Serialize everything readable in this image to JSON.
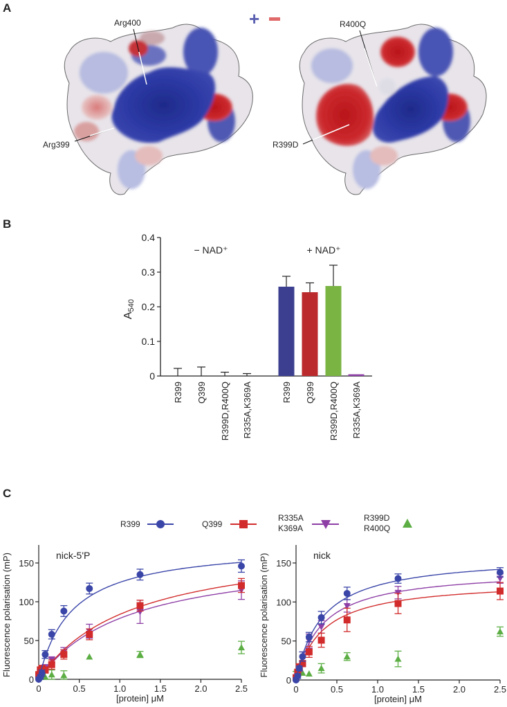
{
  "panels": {
    "a": {
      "letter": "A",
      "legend": {
        "plus": "+",
        "minus": "−",
        "plus_color": "#5a5fb0",
        "minus_color": "#e06a6a"
      },
      "left_structure": {
        "labels": [
          "Arg400",
          "Arg399"
        ]
      },
      "right_structure": {
        "labels": [
          "R400Q",
          "R399D"
        ]
      }
    },
    "b": {
      "letter": "B"
    },
    "c": {
      "letter": "C",
      "legend": [
        {
          "label": "R399",
          "color": "#3a45a8",
          "marker": "circle"
        },
        {
          "label": "Q399",
          "color": "#d22b2b",
          "marker": "square"
        },
        {
          "label_line1": "R335A",
          "label_line2": "K369A",
          "color": "#8e3fa6",
          "marker": "triangle-down"
        },
        {
          "label_line1": "R399D",
          "label_line2": "R400Q",
          "color": "#5cae44",
          "marker": "triangle-up"
        }
      ]
    }
  },
  "chart_data": [
    {
      "type": "bar",
      "panel": "B",
      "title": "",
      "ylabel": "A540",
      "xlabel": "",
      "ylim": [
        0,
        0.4
      ],
      "yticks": [
        0,
        0.1,
        0.2,
        0.3,
        0.4
      ],
      "group_labels": [
        "− NAD⁺",
        "+ NAD⁺"
      ],
      "categories": [
        "R399",
        "Q399",
        "R399D,R400Q",
        "R335A,K369A",
        "R399",
        "Q399",
        "R399D,R400Q",
        "R335A,K369A"
      ],
      "values": [
        0,
        0,
        0,
        0,
        0.258,
        0.242,
        0.26,
        0.005
      ],
      "errors": [
        0.022,
        0.026,
        0.011,
        0.007,
        0.03,
        0.027,
        0.06,
        0
      ],
      "colors": [
        "#3a3f8f",
        "#3a3f8f",
        "#3a3f8f",
        "#3a3f8f",
        "#3c3f8f",
        "#bb2a2c",
        "#7ab443",
        "#8e3fa6"
      ]
    },
    {
      "type": "scatter",
      "panel": "C-left",
      "title": "nick-5'P",
      "xlabel": "[protein] μM",
      "ylabel": "Fluorescence polarisation (mP)",
      "xlim": [
        0,
        2.5
      ],
      "ylim": [
        0,
        175
      ],
      "xticks": [
        0,
        0.5,
        1.0,
        1.5,
        2.0,
        2.5
      ],
      "xtick_labels": [
        "0",
        "0.5",
        "1.0",
        "1.5",
        "2.0",
        "2.5"
      ],
      "yticks": [
        0,
        50,
        100,
        150
      ],
      "x": [
        0,
        0.02,
        0.04,
        0.08,
        0.16,
        0.31,
        0.625,
        1.25,
        2.5
      ],
      "series": [
        {
          "name": "R399",
          "values": [
            0,
            3,
            8,
            32,
            58,
            88,
            117,
            135,
            146
          ],
          "errors": [
            3,
            3,
            4,
            5,
            6,
            7,
            7,
            7,
            8
          ],
          "fit": {
            "bmax": 175,
            "kd": 0.4
          }
        },
        {
          "name": "Q399",
          "values": [
            5,
            12,
            14,
            12,
            19,
            32,
            58,
            95,
            121
          ],
          "errors": [
            5,
            4,
            4,
            4,
            6,
            6,
            7,
            7,
            9
          ],
          "fit": {
            "bmax": 180,
            "kd": 1.15
          }
        },
        {
          "name": "R335A K369A",
          "values": [
            2,
            10,
            13,
            15,
            25,
            35,
            62,
            87,
            115
          ],
          "errors": [
            3,
            3,
            4,
            4,
            4,
            6,
            9,
            15,
            12
          ],
          "fit": {
            "bmax": 165,
            "kd": 1.1
          }
        },
        {
          "name": "R399D R400Q",
          "values": [
            2,
            3,
            3,
            3,
            6,
            5,
            29,
            32,
            41
          ],
          "errors": [
            3,
            3,
            3,
            6,
            6,
            6,
            0,
            4,
            8
          ]
        }
      ]
    },
    {
      "type": "scatter",
      "panel": "C-right",
      "title": "nick",
      "xlabel": "[protein] μM",
      "ylabel": "Fluorescence polarisation (mP)",
      "xlim": [
        0,
        2.5
      ],
      "ylim": [
        0,
        175
      ],
      "xticks": [
        0,
        0.5,
        1.0,
        1.5,
        2.0,
        2.5
      ],
      "xtick_labels": [
        "0",
        "0.5",
        "1.0",
        "1.5",
        "2.0",
        "2.5"
      ],
      "yticks": [
        0,
        50,
        100,
        150
      ],
      "x": [
        0,
        0.02,
        0.04,
        0.08,
        0.16,
        0.31,
        0.625,
        1.25,
        2.5
      ],
      "series": [
        {
          "name": "R399",
          "values": [
            0,
            5,
            15,
            30,
            55,
            80,
            111,
            130,
            138
          ],
          "errors": [
            3,
            3,
            3,
            6,
            6,
            8,
            8,
            6,
            6
          ],
          "fit": {
            "bmax": 160,
            "kd": 0.32
          }
        },
        {
          "name": "Q399",
          "values": [
            3,
            10,
            17,
            21,
            36,
            51,
            77,
            98,
            114
          ],
          "errors": [
            3,
            3,
            3,
            4,
            7,
            9,
            15,
            13,
            11
          ],
          "fit": {
            "bmax": 128,
            "kd": 0.33
          }
        },
        {
          "name": "R335A K369A",
          "values": [
            2,
            8,
            15,
            28,
            50,
            68,
            95,
            112,
            130
          ],
          "errors": [
            3,
            3,
            4,
            8,
            9,
            8,
            8,
            8,
            6
          ],
          "fit": {
            "bmax": 142,
            "kd": 0.32
          }
        },
        {
          "name": "R399D R400Q",
          "values": [
            6,
            8,
            10,
            9,
            8,
            15,
            30,
            27,
            62
          ],
          "errors": [
            5,
            4,
            3,
            0,
            0,
            6,
            5,
            10,
            6
          ]
        }
      ]
    }
  ]
}
